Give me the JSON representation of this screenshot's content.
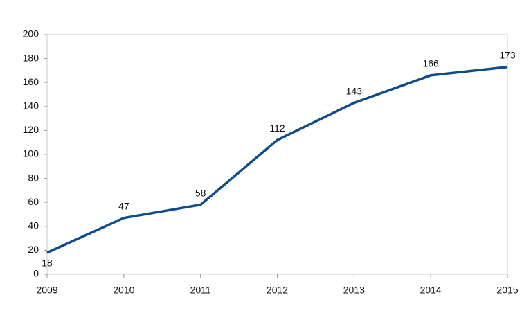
{
  "chart_data": {
    "type": "line",
    "x": [
      2009,
      2010,
      2011,
      2012,
      2013,
      2014,
      2015
    ],
    "values": [
      18,
      47,
      58,
      112,
      143,
      166,
      173
    ],
    "color": "#0f4c8c",
    "xlim": [
      2009,
      2015
    ],
    "xticks": [
      2009,
      2010,
      2011,
      2012,
      2013,
      2014,
      2015
    ],
    "ylim": [
      0,
      200
    ],
    "yticks": [
      0,
      20,
      40,
      60,
      80,
      100,
      120,
      140,
      160,
      180,
      200
    ],
    "grid": false
  }
}
